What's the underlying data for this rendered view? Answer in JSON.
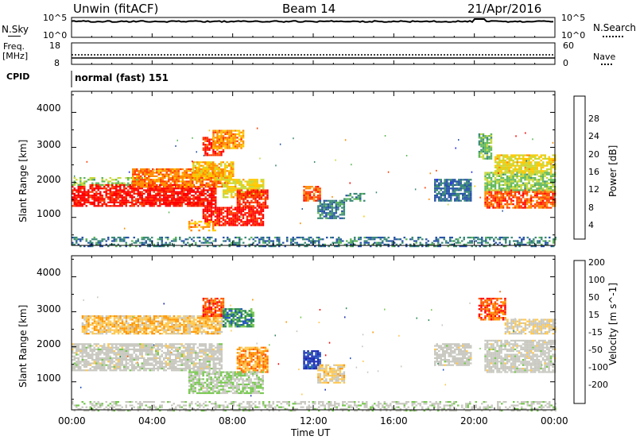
{
  "header": {
    "title": "Unwin (fitACF)",
    "beam": "Beam 14",
    "date": "21/Apr/2016"
  },
  "nsky_panel": {
    "left_label": "N.Sky",
    "left_ticks": [
      "10^5",
      "10^0"
    ],
    "right_label": "N.Search",
    "right_ticks": [
      "10^5",
      "10^0"
    ]
  },
  "freq_panel": {
    "left_label_1": "Freq.",
    "left_label_2": "[MHz]",
    "left_ticks": [
      "18",
      "8"
    ],
    "right_label": "Nave",
    "right_ticks": [
      "60",
      "0"
    ]
  },
  "cpid": {
    "label": "CPID",
    "value": "normal (fast) 151"
  },
  "x_axis": {
    "label": "Time UT",
    "ticks": [
      "00:00",
      "04:00",
      "08:00",
      "12:00",
      "16:00",
      "20:00",
      "00:00"
    ]
  },
  "colors": {
    "power_scale": [
      "#2020ff",
      "#2a55a8",
      "#3c8a78",
      "#5fb85a",
      "#c8d838",
      "#ffc800",
      "#ff8c00",
      "#ff3c00",
      "#ff0000"
    ],
    "velocity_scale": [
      "#ff0000",
      "#ff5a00",
      "#ff9600",
      "#ffc850",
      "#c8c8c0",
      "#c8c8c0",
      "#78c850",
      "#2e8b57",
      "#2050c0",
      "#1a2ab0"
    ]
  },
  "chart_data": [
    {
      "type": "heatmap",
      "name": "power",
      "ylabel": "Slant Range [km]",
      "xlabel": "",
      "yticks": [
        1000,
        2000,
        3000,
        4000
      ],
      "ylim": [
        200,
        4600
      ],
      "xlim_hours": [
        0,
        24
      ],
      "colorbar": {
        "label": "Power [dB]",
        "ticks": [
          4,
          8,
          12,
          16,
          20,
          24,
          28
        ],
        "range": [
          0,
          32
        ]
      },
      "regions": [
        {
          "t0": 0.0,
          "t1": 7.2,
          "r0": 1350,
          "r1": 1950,
          "value": 30
        },
        {
          "t0": 0.0,
          "t1": 3.5,
          "r0": 1950,
          "r1": 2150,
          "value": 14
        },
        {
          "t0": 3.0,
          "t1": 7.5,
          "r0": 1900,
          "r1": 2400,
          "value": 24
        },
        {
          "t0": 6.0,
          "t1": 8.0,
          "r0": 2100,
          "r1": 2600,
          "value": 20
        },
        {
          "t0": 6.5,
          "t1": 7.5,
          "r0": 2800,
          "r1": 3300,
          "value": 28
        },
        {
          "t0": 7.0,
          "t1": 8.5,
          "r0": 3000,
          "r1": 3500,
          "value": 22
        },
        {
          "t0": 7.5,
          "t1": 9.5,
          "r0": 1600,
          "r1": 2100,
          "value": 18
        },
        {
          "t0": 8.2,
          "t1": 9.7,
          "r0": 1300,
          "r1": 1800,
          "value": 28
        },
        {
          "t0": 6.5,
          "t1": 9.5,
          "r0": 800,
          "r1": 1300,
          "value": 30
        },
        {
          "t0": 5.8,
          "t1": 7.2,
          "r0": 650,
          "r1": 900,
          "value": 22
        },
        {
          "t0": 11.5,
          "t1": 12.3,
          "r0": 1500,
          "r1": 1900,
          "value": 26
        },
        {
          "t0": 12.2,
          "t1": 13.5,
          "r0": 1000,
          "r1": 1500,
          "value": 8
        },
        {
          "t0": 13.5,
          "t1": 14.5,
          "r0": 1500,
          "r1": 1700,
          "value": 10
        },
        {
          "t0": 18.0,
          "t1": 19.8,
          "r0": 1500,
          "r1": 2100,
          "value": 7
        },
        {
          "t0": 20.5,
          "t1": 24.0,
          "r0": 1300,
          "r1": 1800,
          "value": 26
        },
        {
          "t0": 20.5,
          "t1": 24.0,
          "r0": 1800,
          "r1": 2300,
          "value": 14
        },
        {
          "t0": 21.0,
          "t1": 24.0,
          "r0": 2300,
          "r1": 2800,
          "value": 18
        },
        {
          "t0": 20.2,
          "t1": 20.8,
          "r0": 2700,
          "r1": 3400,
          "value": 12
        },
        {
          "t0": 0.0,
          "t1": 24.0,
          "r0": 200,
          "r1": 450,
          "value": 8
        }
      ]
    },
    {
      "type": "heatmap",
      "name": "velocity",
      "ylabel": "Slant Range [km]",
      "xlabel": "Time UT",
      "yticks": [
        1000,
        2000,
        3000,
        4000
      ],
      "ylim": [
        200,
        4600
      ],
      "xlim_hours": [
        0,
        24
      ],
      "colorbar": {
        "label": "Velocity [m s^-1]",
        "ticks": [
          -200,
          -100,
          -50,
          -15,
          15,
          50,
          100,
          200
        ],
        "range": [
          -250,
          250
        ]
      },
      "regions": [
        {
          "t0": 0.0,
          "t1": 7.5,
          "r0": 1350,
          "r1": 2100,
          "value": 0
        },
        {
          "t0": 0.5,
          "t1": 7.5,
          "r0": 2400,
          "r1": 2900,
          "value": -80
        },
        {
          "t0": 6.5,
          "t1": 7.5,
          "r0": 2900,
          "r1": 3400,
          "value": -180
        },
        {
          "t0": 7.5,
          "t1": 9.0,
          "r0": 2600,
          "r1": 3100,
          "value": 120
        },
        {
          "t0": 8.2,
          "t1": 9.7,
          "r0": 1300,
          "r1": 2000,
          "value": -120
        },
        {
          "t0": 5.8,
          "t1": 9.5,
          "r0": 700,
          "r1": 1300,
          "value": 40
        },
        {
          "t0": 11.5,
          "t1": 12.3,
          "r0": 1400,
          "r1": 1900,
          "value": 200
        },
        {
          "t0": 12.2,
          "t1": 13.5,
          "r0": 1000,
          "r1": 1500,
          "value": -60
        },
        {
          "t0": 18.0,
          "t1": 19.8,
          "r0": 1500,
          "r1": 2100,
          "value": 0
        },
        {
          "t0": 20.5,
          "t1": 24.0,
          "r0": 1300,
          "r1": 2200,
          "value": 0
        },
        {
          "t0": 20.2,
          "t1": 21.5,
          "r0": 2800,
          "r1": 3400,
          "value": -180
        },
        {
          "t0": 21.5,
          "t1": 24.0,
          "r0": 2400,
          "r1": 2800,
          "value": -40
        },
        {
          "t0": 0.0,
          "t1": 24.0,
          "r0": 200,
          "r1": 450,
          "value": 20
        }
      ]
    }
  ]
}
